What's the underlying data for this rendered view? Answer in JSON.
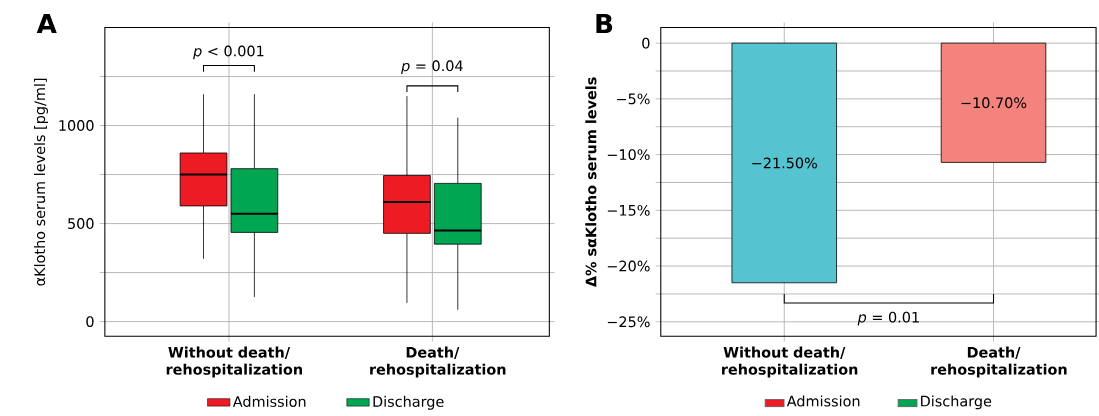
{
  "chart_data": [
    {
      "type": "box",
      "title": "A",
      "ylabel": "αKlotho serum levels [pg/ml]",
      "categories": [
        "Without death/ rehospitalization",
        "Death/ rehospitalization"
      ],
      "series": [
        {
          "name": "Admission",
          "color": "#ed1c24",
          "boxes": [
            {
              "low": 320,
              "q1": 590,
              "median": 750,
              "q3": 860,
              "high": 1160
            },
            {
              "low": 95,
              "q1": 450,
              "median": 610,
              "q3": 745,
              "high": 1150
            }
          ]
        },
        {
          "name": "Discharge",
          "color": "#00a651",
          "boxes": [
            {
              "low": 125,
              "q1": 455,
              "median": 550,
              "q3": 780,
              "high": 1160
            },
            {
              "low": 60,
              "q1": 395,
              "median": 465,
              "q3": 705,
              "high": 1040
            }
          ]
        }
      ],
      "ylim": [
        -75,
        1500
      ],
      "yticks": [
        0,
        {
          "value": 250,
          "label": null
        },
        500,
        {
          "value": 750,
          "label": null
        },
        1000,
        {
          "value": 1250,
          "label": null
        }
      ],
      "grid": true,
      "legend": "bottom",
      "annotations": [
        "*p* < 0.001",
        "*p* = 0.04"
      ]
    },
    {
      "type": "bar",
      "title": "B",
      "ylabel": "Δ% sαKlotho serum levels",
      "categories": [
        "Without death/ rehospitalization",
        "Death/ rehospitalization"
      ],
      "values": [
        -21.5,
        -10.7
      ],
      "colors": [
        "#56c4d0",
        "#f4837d"
      ],
      "value_labels": [
        "−21.50%",
        "−10.70%"
      ],
      "ylim": [
        -26.3,
        1.4
      ],
      "yticks": [
        {
          "value": -25,
          "label": "−25%"
        },
        {
          "value": -22.5,
          "label": null
        },
        {
          "value": -20,
          "label": "−20%"
        },
        {
          "value": -17.5,
          "label": null
        },
        {
          "value": -15,
          "label": "−15%"
        },
        {
          "value": -12.5,
          "label": null
        },
        {
          "value": -10,
          "label": "−10%"
        },
        {
          "value": -7.5,
          "label": null
        },
        {
          "value": -5,
          "label": "−5%"
        },
        {
          "value": -2.5,
          "label": null
        },
        0
      ],
      "grid": true,
      "annotations": [
        "*p* = 0.01",
        "Admission",
        "Discharge"
      ]
    }
  ]
}
